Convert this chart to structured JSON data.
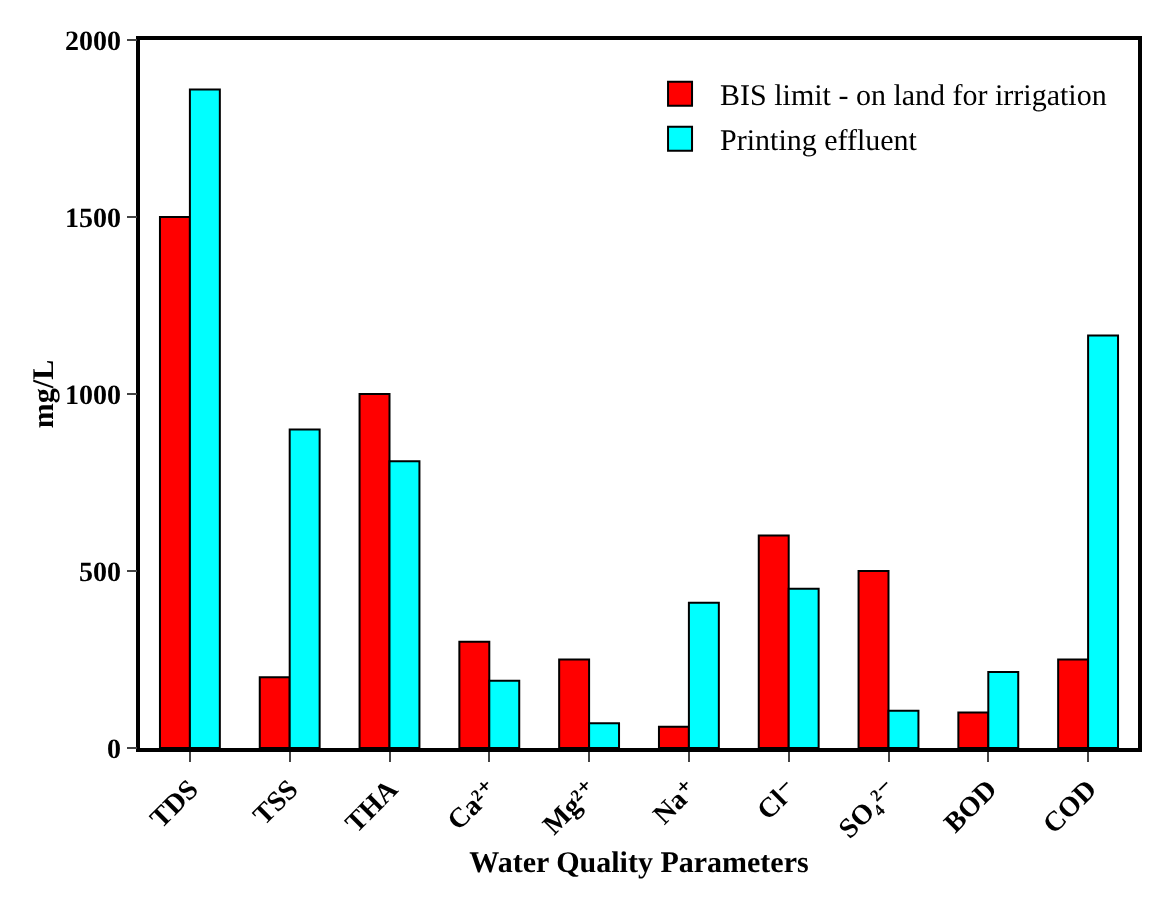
{
  "chart_data": {
    "type": "bar",
    "xlabel": "Water Quality Parameters",
    "ylabel": "mg/L",
    "categories": [
      "TDS",
      "TSS",
      "THA",
      "Ca²⁺",
      "Mg²⁺",
      "Na⁺",
      "Cl⁻",
      "SO₄²⁻",
      "BOD",
      "COD"
    ],
    "series": [
      {
        "name": "BIS limit - on land for irrigation",
        "color": "#ff0000",
        "values": [
          1500,
          200,
          1000,
          300,
          250,
          60,
          600,
          500,
          100,
          250
        ]
      },
      {
        "name": "Printing effluent",
        "color": "#00ffff",
        "values": [
          1860,
          900,
          810,
          190,
          70,
          410,
          450,
          105,
          215,
          1165
        ]
      }
    ],
    "ylim": [
      0,
      2000
    ],
    "yticks": [
      0,
      500,
      1000,
      1500,
      2000
    ],
    "grid": false,
    "legend": "top right"
  }
}
